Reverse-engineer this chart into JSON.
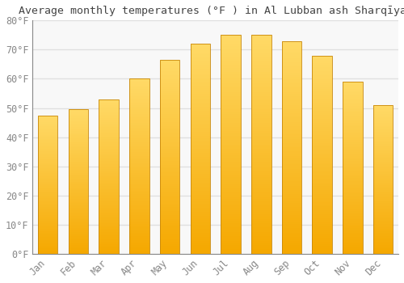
{
  "title": "Average monthly temperatures (°F ) in Al Lubban ash Sharqīyah",
  "months": [
    "Jan",
    "Feb",
    "Mar",
    "Apr",
    "May",
    "Jun",
    "Jul",
    "Aug",
    "Sep",
    "Oct",
    "Nov",
    "Dec"
  ],
  "values": [
    47.5,
    49.5,
    53,
    60,
    66.5,
    72,
    75,
    75,
    73,
    68,
    59,
    51
  ],
  "bar_color_bottom": "#F5A800",
  "bar_color_top": "#FFD966",
  "bar_edge_color": "#C8870A",
  "background_color": "#FFFFFF",
  "plot_bg_color": "#F8F8F8",
  "grid_color": "#E0E0E0",
  "ylim": [
    0,
    80
  ],
  "yticks": [
    0,
    10,
    20,
    30,
    40,
    50,
    60,
    70,
    80
  ],
  "ytick_labels": [
    "0°F",
    "10°F",
    "20°F",
    "30°F",
    "40°F",
    "50°F",
    "60°F",
    "70°F",
    "80°F"
  ],
  "title_fontsize": 9.5,
  "tick_fontsize": 8.5,
  "tick_color": "#888888",
  "font_family": "monospace",
  "bar_width": 0.65,
  "n_gradient_steps": 100
}
